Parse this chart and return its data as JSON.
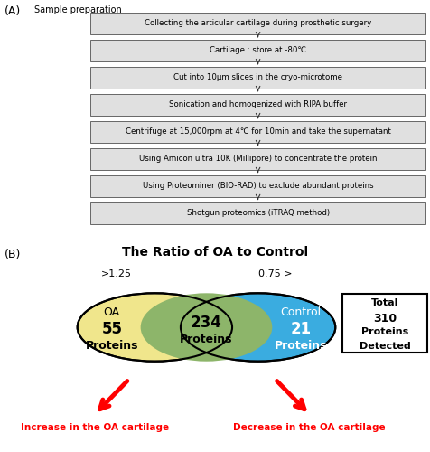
{
  "panel_A_label": "(A)",
  "panel_B_label": "(B)",
  "sample_prep_label": "Sample preparation",
  "flowchart_steps": [
    "Collecting the articular cartilage during prosthetic surgery",
    "Cartilage : store at -80℃",
    "Cut into 10μm slices in the cryo-microtome",
    "Sonication and homogenized with RIPA buffer",
    "Centrifuge at 15,000rpm at 4℃ for 10min and take the supernatant",
    "Using Amicon ultra 10K (Millipore) to concentrate the protein",
    "Using Proteominer (BIO-RAD) to exclude abundant proteins",
    "Shotgun proteomics (iTRAQ method)"
  ],
  "venn_title": "The Ratio of OA to Control",
  "venn_left_label": ">1.25",
  "venn_right_label": "0.75 >",
  "venn_left_color": "#F0E68C",
  "venn_right_color": "#3AACE0",
  "venn_overlap_color": "#8DB56A",
  "venn_left_text": "OA",
  "venn_left_count": "55",
  "venn_left_unit": "Proteins",
  "venn_overlap_count": "234",
  "venn_overlap_unit": "Proteins",
  "venn_right_text": "Control",
  "venn_right_count": "21",
  "venn_right_unit": "Proteins",
  "total_box_line1": "Total",
  "total_box_line2": "310",
  "total_box_line3": "Proteins",
  "total_box_line4": "Detected",
  "arrow_left_text": "Increase in the OA cartilage",
  "arrow_right_text": "Decrease in the OA cartilage",
  "box_bg": "#E0E0E0",
  "box_edge": "#666666"
}
